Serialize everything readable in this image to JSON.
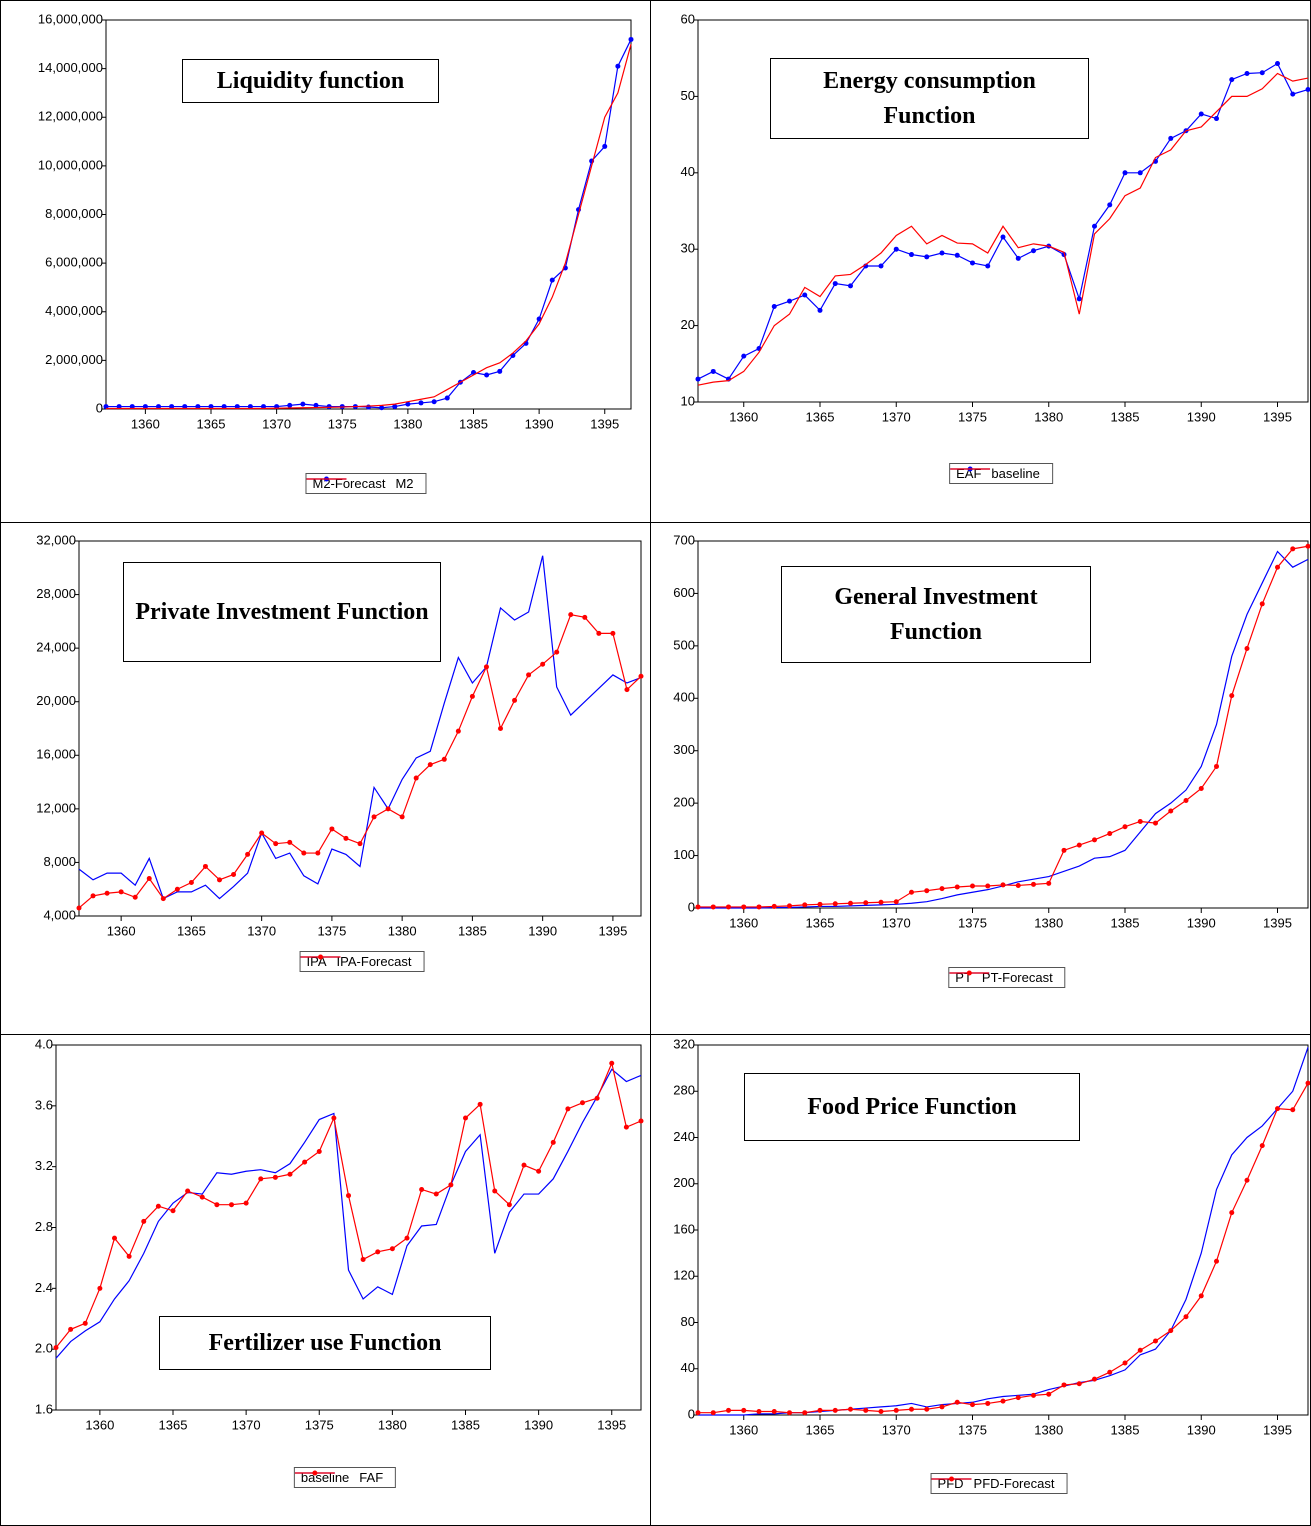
{
  "chart_data": [
    {
      "type": "line",
      "title": "Liquidity function",
      "x": [
        1357,
        1358,
        1359,
        1360,
        1361,
        1362,
        1363,
        1364,
        1365,
        1366,
        1367,
        1368,
        1369,
        1370,
        1371,
        1372,
        1373,
        1374,
        1375,
        1376,
        1377,
        1378,
        1379,
        1380,
        1381,
        1382,
        1383,
        1384,
        1385,
        1386,
        1387,
        1388,
        1389,
        1390,
        1391,
        1392,
        1393,
        1394,
        1395,
        1396,
        1397
      ],
      "xlim": [
        1357,
        1397
      ],
      "xticks": [
        1360,
        1365,
        1370,
        1375,
        1380,
        1385,
        1390,
        1395
      ],
      "ylim": [
        0,
        16000000
      ],
      "yticks": [
        0,
        {
          "value": 2000000,
          "label": "2,000,000"
        },
        {
          "value": 4000000,
          "label": "4,000,000"
        },
        {
          "value": 6000000,
          "label": "6,000,000"
        },
        {
          "value": 8000000,
          "label": "8,000,000"
        },
        {
          "value": 10000000,
          "label": "10,000,000"
        },
        {
          "value": 12000000,
          "label": "12,000,000"
        },
        {
          "value": 14000000,
          "label": "14,000,000"
        },
        {
          "value": 16000000,
          "label": "16,000,000"
        }
      ],
      "series": [
        {
          "name": "M2-Forecast",
          "color": "#0000ff",
          "marker": true,
          "values": [
            100000,
            100000,
            100000,
            100000,
            100000,
            100000,
            100000,
            100000,
            100000,
            100000,
            100000,
            100000,
            100000,
            100000,
            150000,
            200000,
            150000,
            100000,
            100000,
            100000,
            80000,
            50000,
            100000,
            200000,
            250000,
            300000,
            450000,
            1100000,
            1500000,
            1400000,
            1550000,
            2200000,
            2700000,
            3700000,
            5300000,
            5800000,
            8200000,
            10200000,
            10800000,
            14100000,
            15200000
          ]
        },
        {
          "name": "M2",
          "color": "#ff0000",
          "marker": false,
          "values": [
            20000,
            20000,
            20000,
            20000,
            20000,
            20000,
            20000,
            20000,
            20000,
            20000,
            20000,
            20000,
            20000,
            30000,
            40000,
            50000,
            60000,
            70000,
            80000,
            100000,
            120000,
            150000,
            200000,
            300000,
            400000,
            500000,
            800000,
            1100000,
            1400000,
            1700000,
            1900000,
            2300000,
            2800000,
            3500000,
            4600000,
            6000000,
            8000000,
            10000000,
            12000000,
            13000000,
            15000000
          ]
        }
      ]
    },
    {
      "type": "line",
      "title": "Energy consumption Function",
      "x": [
        1357,
        1358,
        1359,
        1360,
        1361,
        1362,
        1363,
        1364,
        1365,
        1366,
        1367,
        1368,
        1369,
        1370,
        1371,
        1372,
        1373,
        1374,
        1375,
        1376,
        1377,
        1378,
        1379,
        1380,
        1381,
        1382,
        1383,
        1384,
        1385,
        1386,
        1387,
        1388,
        1389,
        1390,
        1391,
        1392,
        1393,
        1394,
        1395,
        1396,
        1397
      ],
      "xlim": [
        1357,
        1397
      ],
      "xticks": [
        1360,
        1365,
        1370,
        1375,
        1380,
        1385,
        1390,
        1395
      ],
      "ylim": [
        10,
        60
      ],
      "yticks": [
        10,
        20,
        30,
        40,
        50,
        60
      ],
      "series": [
        {
          "name": "EAF",
          "color": "#0000ff",
          "marker": true,
          "values": [
            13,
            14,
            13,
            16,
            17,
            22.5,
            23.2,
            24,
            22,
            25.5,
            25.2,
            27.8,
            27.8,
            30,
            29.3,
            29,
            29.5,
            29.2,
            28.2,
            27.8,
            31.6,
            28.8,
            29.8,
            30.4,
            29.3,
            23.5,
            33,
            35.8,
            40,
            40,
            41.5,
            44.5,
            45.5,
            47.7,
            47.1,
            52.2,
            53,
            53.1,
            54.3,
            50.3,
            50.9
          ]
        },
        {
          "name": "baseline",
          "color": "#ff0000",
          "marker": false,
          "values": [
            12.2,
            12.6,
            12.8,
            14,
            16.5,
            20,
            21.5,
            25,
            23.8,
            26.5,
            26.7,
            28,
            29.5,
            31.8,
            33,
            30.7,
            31.8,
            30.8,
            30.7,
            29.5,
            33,
            30.2,
            30.7,
            30.4,
            29.6,
            21.5,
            32,
            34,
            37,
            38,
            42,
            43,
            45.5,
            46,
            48,
            50,
            50,
            51,
            53,
            52,
            52.4
          ]
        }
      ]
    },
    {
      "type": "line",
      "title": "Private Investment Function",
      "x": [
        1357,
        1358,
        1359,
        1360,
        1361,
        1362,
        1363,
        1364,
        1365,
        1366,
        1367,
        1368,
        1369,
        1370,
        1371,
        1372,
        1373,
        1374,
        1375,
        1376,
        1377,
        1378,
        1379,
        1380,
        1381,
        1382,
        1383,
        1384,
        1385,
        1386,
        1387,
        1388,
        1389,
        1390,
        1391,
        1392,
        1393,
        1394,
        1395,
        1396,
        1397
      ],
      "xlim": [
        1357,
        1397
      ],
      "xticks": [
        1360,
        1365,
        1370,
        1375,
        1380,
        1385,
        1390,
        1395
      ],
      "ylim": [
        4000,
        32000
      ],
      "yticks": [
        {
          "value": 4000,
          "label": "4,000"
        },
        {
          "value": 8000,
          "label": "8,000"
        },
        {
          "value": 12000,
          "label": "12,000"
        },
        {
          "value": 16000,
          "label": "16,000"
        },
        {
          "value": 20000,
          "label": "20,000"
        },
        {
          "value": 24000,
          "label": "24,000"
        },
        {
          "value": 28000,
          "label": "28,000"
        },
        {
          "value": 32000,
          "label": "32,000"
        }
      ],
      "series": [
        {
          "name": "IPA",
          "color": "#0000ff",
          "marker": false,
          "values": [
            7500,
            6700,
            7200,
            7200,
            6300,
            8300,
            5300,
            5800,
            5800,
            6300,
            5300,
            6200,
            7200,
            10200,
            8300,
            8700,
            7000,
            6400,
            9000,
            8600,
            7700,
            13600,
            12000,
            14200,
            15800,
            16300,
            19900,
            23300,
            21400,
            22600,
            27000,
            26100,
            26700,
            30900,
            21100,
            19000,
            20000,
            21000,
            22000,
            21400,
            21800
          ]
        },
        {
          "name": "IPA-Forecast",
          "color": "#ff0000",
          "marker": true,
          "values": [
            4600,
            5500,
            5700,
            5800,
            5400,
            6800,
            5300,
            6000,
            6500,
            7700,
            6700,
            7100,
            8600,
            10200,
            9400,
            9500,
            8700,
            8700,
            10500,
            9800,
            9400,
            11400,
            12000,
            11400,
            14300,
            15300,
            15700,
            17800,
            20400,
            22600,
            18000,
            20100,
            22000,
            22800,
            23700,
            26500,
            26300,
            25100,
            25100,
            20900,
            21900
          ]
        }
      ]
    },
    {
      "type": "line",
      "title": "General Investment Function",
      "x": [
        1357,
        1358,
        1359,
        1360,
        1361,
        1362,
        1363,
        1364,
        1365,
        1366,
        1367,
        1368,
        1369,
        1370,
        1371,
        1372,
        1373,
        1374,
        1375,
        1376,
        1377,
        1378,
        1379,
        1380,
        1381,
        1382,
        1383,
        1384,
        1385,
        1386,
        1387,
        1388,
        1389,
        1390,
        1391,
        1392,
        1393,
        1394,
        1395,
        1396,
        1397
      ],
      "xlim": [
        1357,
        1397
      ],
      "xticks": [
        1360,
        1365,
        1370,
        1375,
        1380,
        1385,
        1390,
        1395
      ],
      "ylim": [
        0,
        700
      ],
      "yticks": [
        0,
        100,
        200,
        300,
        400,
        500,
        600,
        700
      ],
      "series": [
        {
          "name": "PT",
          "color": "#0000ff",
          "marker": false,
          "values": [
            0,
            0,
            0,
            0,
            0,
            1,
            1,
            2,
            3,
            3,
            4,
            5,
            6,
            7,
            9,
            12,
            18,
            25,
            30,
            35,
            42,
            50,
            55,
            60,
            70,
            80,
            95,
            98,
            110,
            145,
            180,
            200,
            225,
            270,
            350,
            480,
            560,
            620,
            680,
            650,
            665
          ]
        },
        {
          "name": "PT-Forecast",
          "color": "#ff0000",
          "marker": true,
          "values": [
            2,
            2,
            2,
            2,
            2,
            3,
            4,
            6,
            7,
            8,
            9,
            10,
            11,
            12,
            30,
            33,
            37,
            40,
            42,
            42,
            44,
            43,
            45,
            47,
            110,
            120,
            130,
            142,
            155,
            165,
            162,
            185,
            205,
            228,
            270,
            405,
            495,
            580,
            650,
            685,
            690
          ]
        }
      ]
    },
    {
      "type": "line",
      "title": "Fertilizer use Function",
      "x": [
        1357,
        1358,
        1359,
        1360,
        1361,
        1362,
        1363,
        1364,
        1365,
        1366,
        1367,
        1368,
        1369,
        1370,
        1371,
        1372,
        1373,
        1374,
        1375,
        1376,
        1377,
        1378,
        1379,
        1380,
        1381,
        1382,
        1383,
        1384,
        1385,
        1386,
        1387,
        1388,
        1389,
        1390,
        1391,
        1392,
        1393,
        1394,
        1395,
        1396,
        1397
      ],
      "xlim": [
        1357,
        1397
      ],
      "xticks": [
        1360,
        1365,
        1370,
        1375,
        1380,
        1385,
        1390,
        1395
      ],
      "ylim": [
        1.6,
        4.0
      ],
      "yticks": [
        1.6,
        {
          "value": 2.0,
          "label": "2.0"
        },
        2.4,
        2.8,
        3.2,
        3.6,
        {
          "value": 4.0,
          "label": "4.0"
        }
      ],
      "series": [
        {
          "name": "baseline",
          "color": "#0000ff",
          "marker": false,
          "values": [
            1.94,
            2.05,
            2.12,
            2.18,
            2.33,
            2.45,
            2.63,
            2.84,
            2.96,
            3.03,
            3.02,
            3.16,
            3.15,
            3.17,
            3.18,
            3.16,
            3.22,
            3.36,
            3.51,
            3.55,
            2.52,
            2.33,
            2.41,
            2.36,
            2.68,
            2.81,
            2.82,
            3.08,
            3.3,
            3.41,
            2.63,
            2.9,
            3.02,
            3.02,
            3.12,
            3.3,
            3.49,
            3.66,
            3.84,
            3.76,
            3.8
          ]
        },
        {
          "name": "FAF",
          "color": "#ff0000",
          "marker": true,
          "values": [
            2.01,
            2.13,
            2.17,
            2.4,
            2.73,
            2.61,
            2.84,
            2.94,
            2.91,
            3.04,
            3.0,
            2.95,
            2.95,
            2.96,
            3.12,
            3.13,
            3.15,
            3.23,
            3.3,
            3.52,
            3.01,
            2.59,
            2.64,
            2.66,
            2.73,
            3.05,
            3.02,
            3.08,
            3.52,
            3.61,
            3.04,
            2.95,
            3.21,
            3.17,
            3.36,
            3.58,
            3.62,
            3.65,
            3.88,
            3.46,
            3.5
          ]
        }
      ]
    },
    {
      "type": "line",
      "title": "Food Price Function",
      "x": [
        1357,
        1358,
        1359,
        1360,
        1361,
        1362,
        1363,
        1364,
        1365,
        1366,
        1367,
        1368,
        1369,
        1370,
        1371,
        1372,
        1373,
        1374,
        1375,
        1376,
        1377,
        1378,
        1379,
        1380,
        1381,
        1382,
        1383,
        1384,
        1385,
        1386,
        1387,
        1388,
        1389,
        1390,
        1391,
        1392,
        1393,
        1394,
        1395,
        1396,
        1397
      ],
      "xlim": [
        1357,
        1397
      ],
      "xticks": [
        1360,
        1365,
        1370,
        1375,
        1380,
        1385,
        1390,
        1395
      ],
      "ylim": [
        0,
        320
      ],
      "yticks": [
        0,
        40,
        80,
        120,
        160,
        200,
        240,
        280,
        320
      ],
      "series": [
        {
          "name": "PFD",
          "color": "#0000ff",
          "marker": false,
          "values": [
            0,
            0,
            0,
            0,
            1,
            1,
            2,
            2,
            3,
            4,
            5,
            6,
            7,
            8,
            10,
            7,
            9,
            10,
            11,
            14,
            16,
            17,
            18,
            22,
            25,
            28,
            30,
            34,
            39,
            52,
            57,
            73,
            100,
            140,
            195,
            225,
            240,
            250,
            265,
            280,
            318
          ]
        },
        {
          "name": "PFD-Forecast",
          "color": "#ff0000",
          "marker": true,
          "values": [
            2,
            2,
            4,
            4,
            3,
            3,
            2,
            2,
            4,
            4,
            5,
            4,
            3,
            4,
            5,
            5,
            7,
            11,
            9,
            10,
            12,
            15,
            17,
            18,
            26,
            27,
            31,
            37,
            45,
            56,
            64,
            73,
            85,
            103,
            133,
            175,
            203,
            233,
            265,
            264,
            287
          ]
        }
      ]
    }
  ]
}
